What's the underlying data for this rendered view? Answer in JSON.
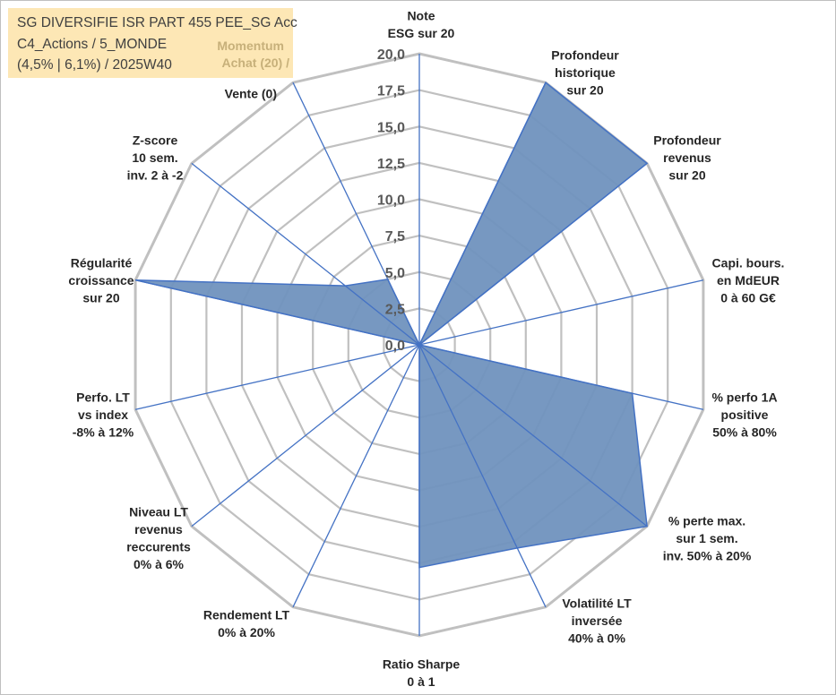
{
  "info": {
    "line1": "SG DIVERSIFIE ISR PART 455 PEE_SG Acc",
    "line2": "C4_Actions / 5_MONDE",
    "line3": "(4,5% | 6,1%) / 2025W40"
  },
  "chart_data": {
    "type": "radar",
    "title": "",
    "rmax": 20,
    "ticks": [
      0,
      2.5,
      5,
      7.5,
      10,
      12.5,
      15,
      17.5,
      20
    ],
    "tick_labels": [
      "0,0",
      "2,5",
      "5,0",
      "7,5",
      "10,0",
      "12,5",
      "15,0",
      "17,5",
      "20,0"
    ],
    "axes": [
      {
        "label": [
          "Note",
          "ESG sur 20"
        ],
        "value": 0
      },
      {
        "label": [
          "Profondeur",
          "historique",
          "sur 20"
        ],
        "value": 20
      },
      {
        "label": [
          "Profondeur",
          "revenus",
          "sur 20"
        ],
        "value": 20
      },
      {
        "label": [
          "Capi. bours.",
          "en MdEUR",
          "0 à 60 G€"
        ],
        "value": 0
      },
      {
        "label": [
          "% perfo 1A",
          "positive",
          "50% à 80%"
        ],
        "value": 15
      },
      {
        "label": [
          "% perte max.",
          "sur 1 sem.",
          "inv. 50% à 20%"
        ],
        "value": 20
      },
      {
        "label": [
          "Volatilité LT",
          "inversée",
          "40% à 0%"
        ],
        "value": 15.5
      },
      {
        "label": [
          "Ratio Sharpe",
          "0 à 1"
        ],
        "value": 15.3
      },
      {
        "label": [
          "Rendement LT",
          "0% à 20%"
        ],
        "value": 0
      },
      {
        "label": [
          "Niveau LT",
          "revenus",
          "reccurents",
          "0% à 6%"
        ],
        "value": 0
      },
      {
        "label": [
          "Perfo. LT",
          "vs index",
          "-8% à 12%"
        ],
        "value": 0
      },
      {
        "label": [
          "Régularité",
          "croissance",
          "sur 20"
        ],
        "value": 20
      },
      {
        "label": [
          "Z-score",
          "10 sem.",
          "inv. 2 à -2"
        ],
        "value": 6.5
      },
      {
        "label": [
          "Momentum",
          "Achat (20) /",
          "Vente (0)"
        ],
        "value": 5
      }
    ],
    "colors": {
      "fill": "#7092be",
      "stroke": "#4472c4",
      "grid": "#c0c0c0",
      "spoke": "#4472c4"
    }
  }
}
